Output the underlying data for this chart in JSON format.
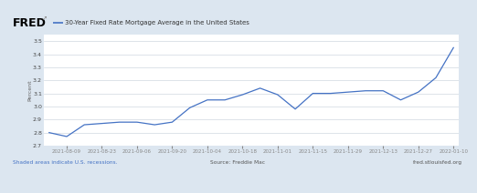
{
  "title_fred": "FRED",
  "title_line": "30-Year Fixed Rate Mortgage Average in the United States",
  "ylabel": "Percent",
  "footer_left": "Shaded areas indicate U.S. recessions.",
  "footer_center": "Source: Freddie Mac",
  "footer_right": "fred.stlouisfed.org",
  "background_color": "#dce6f0",
  "plot_background_color": "#ffffff",
  "line_color": "#4472c4",
  "values": [
    2.8,
    2.77,
    2.86,
    2.87,
    2.88,
    2.88,
    2.86,
    2.88,
    2.99,
    3.05,
    3.05,
    3.09,
    3.14,
    3.09,
    2.98,
    3.1,
    3.1,
    3.11,
    3.12,
    3.12,
    3.05,
    3.11,
    3.22,
    3.45
  ],
  "ylim": [
    2.7,
    3.55
  ],
  "yticks": [
    2.7,
    2.8,
    2.9,
    3.0,
    3.1,
    3.2,
    3.3,
    3.4,
    3.5
  ],
  "xtick_labels": [
    "2021-08-09",
    "2021-08-23",
    "2021-09-06",
    "2021-09-20",
    "2021-10-04",
    "2021-10-18",
    "2021-11-01",
    "2021-11-15",
    "2021-11-29",
    "2021-12-13",
    "2021-12-27",
    "2022-01-10"
  ],
  "xtick_positions": [
    1,
    3,
    5,
    7,
    9,
    11,
    13,
    15,
    17,
    19,
    21,
    23
  ]
}
